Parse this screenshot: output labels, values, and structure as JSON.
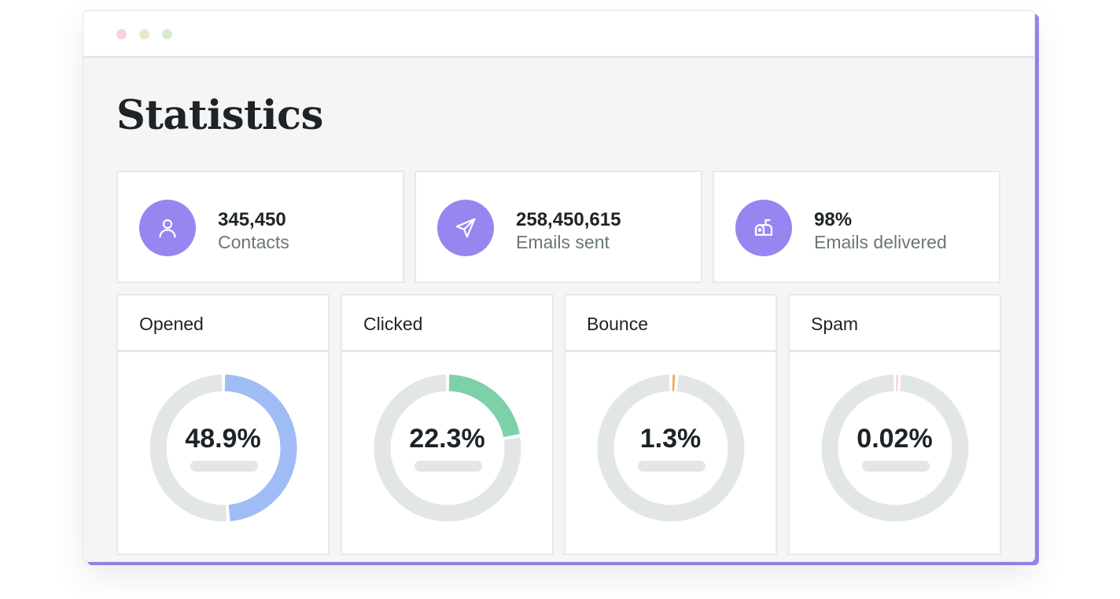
{
  "page_title": "Statistics",
  "window_dots": [
    "#f4d4d6",
    "#efe6c7",
    "#d6eccb"
  ],
  "stats": [
    {
      "icon": "user-icon",
      "value": "345,450",
      "label": "Contacts"
    },
    {
      "icon": "send-icon",
      "value": "258,450,615",
      "label": "Emails sent"
    },
    {
      "icon": "mailbox-icon",
      "value": "98%",
      "label": "Emails delivered"
    }
  ],
  "metrics": [
    {
      "label": "Opened",
      "value": "48.9%",
      "fraction": 0.489,
      "color": "#9fbdf4"
    },
    {
      "label": "Clicked",
      "value": "22.3%",
      "fraction": 0.223,
      "color": "#7dd1a8"
    },
    {
      "label": "Bounce",
      "value": "1.3%",
      "fraction": 0.013,
      "color": "#e3b25e"
    },
    {
      "label": "Spam",
      "value": "0.02%",
      "fraction": 0.0002,
      "color": "#f0a3a0"
    }
  ],
  "colors": {
    "accent": "#9785f0",
    "track": "#e3e6e7"
  }
}
